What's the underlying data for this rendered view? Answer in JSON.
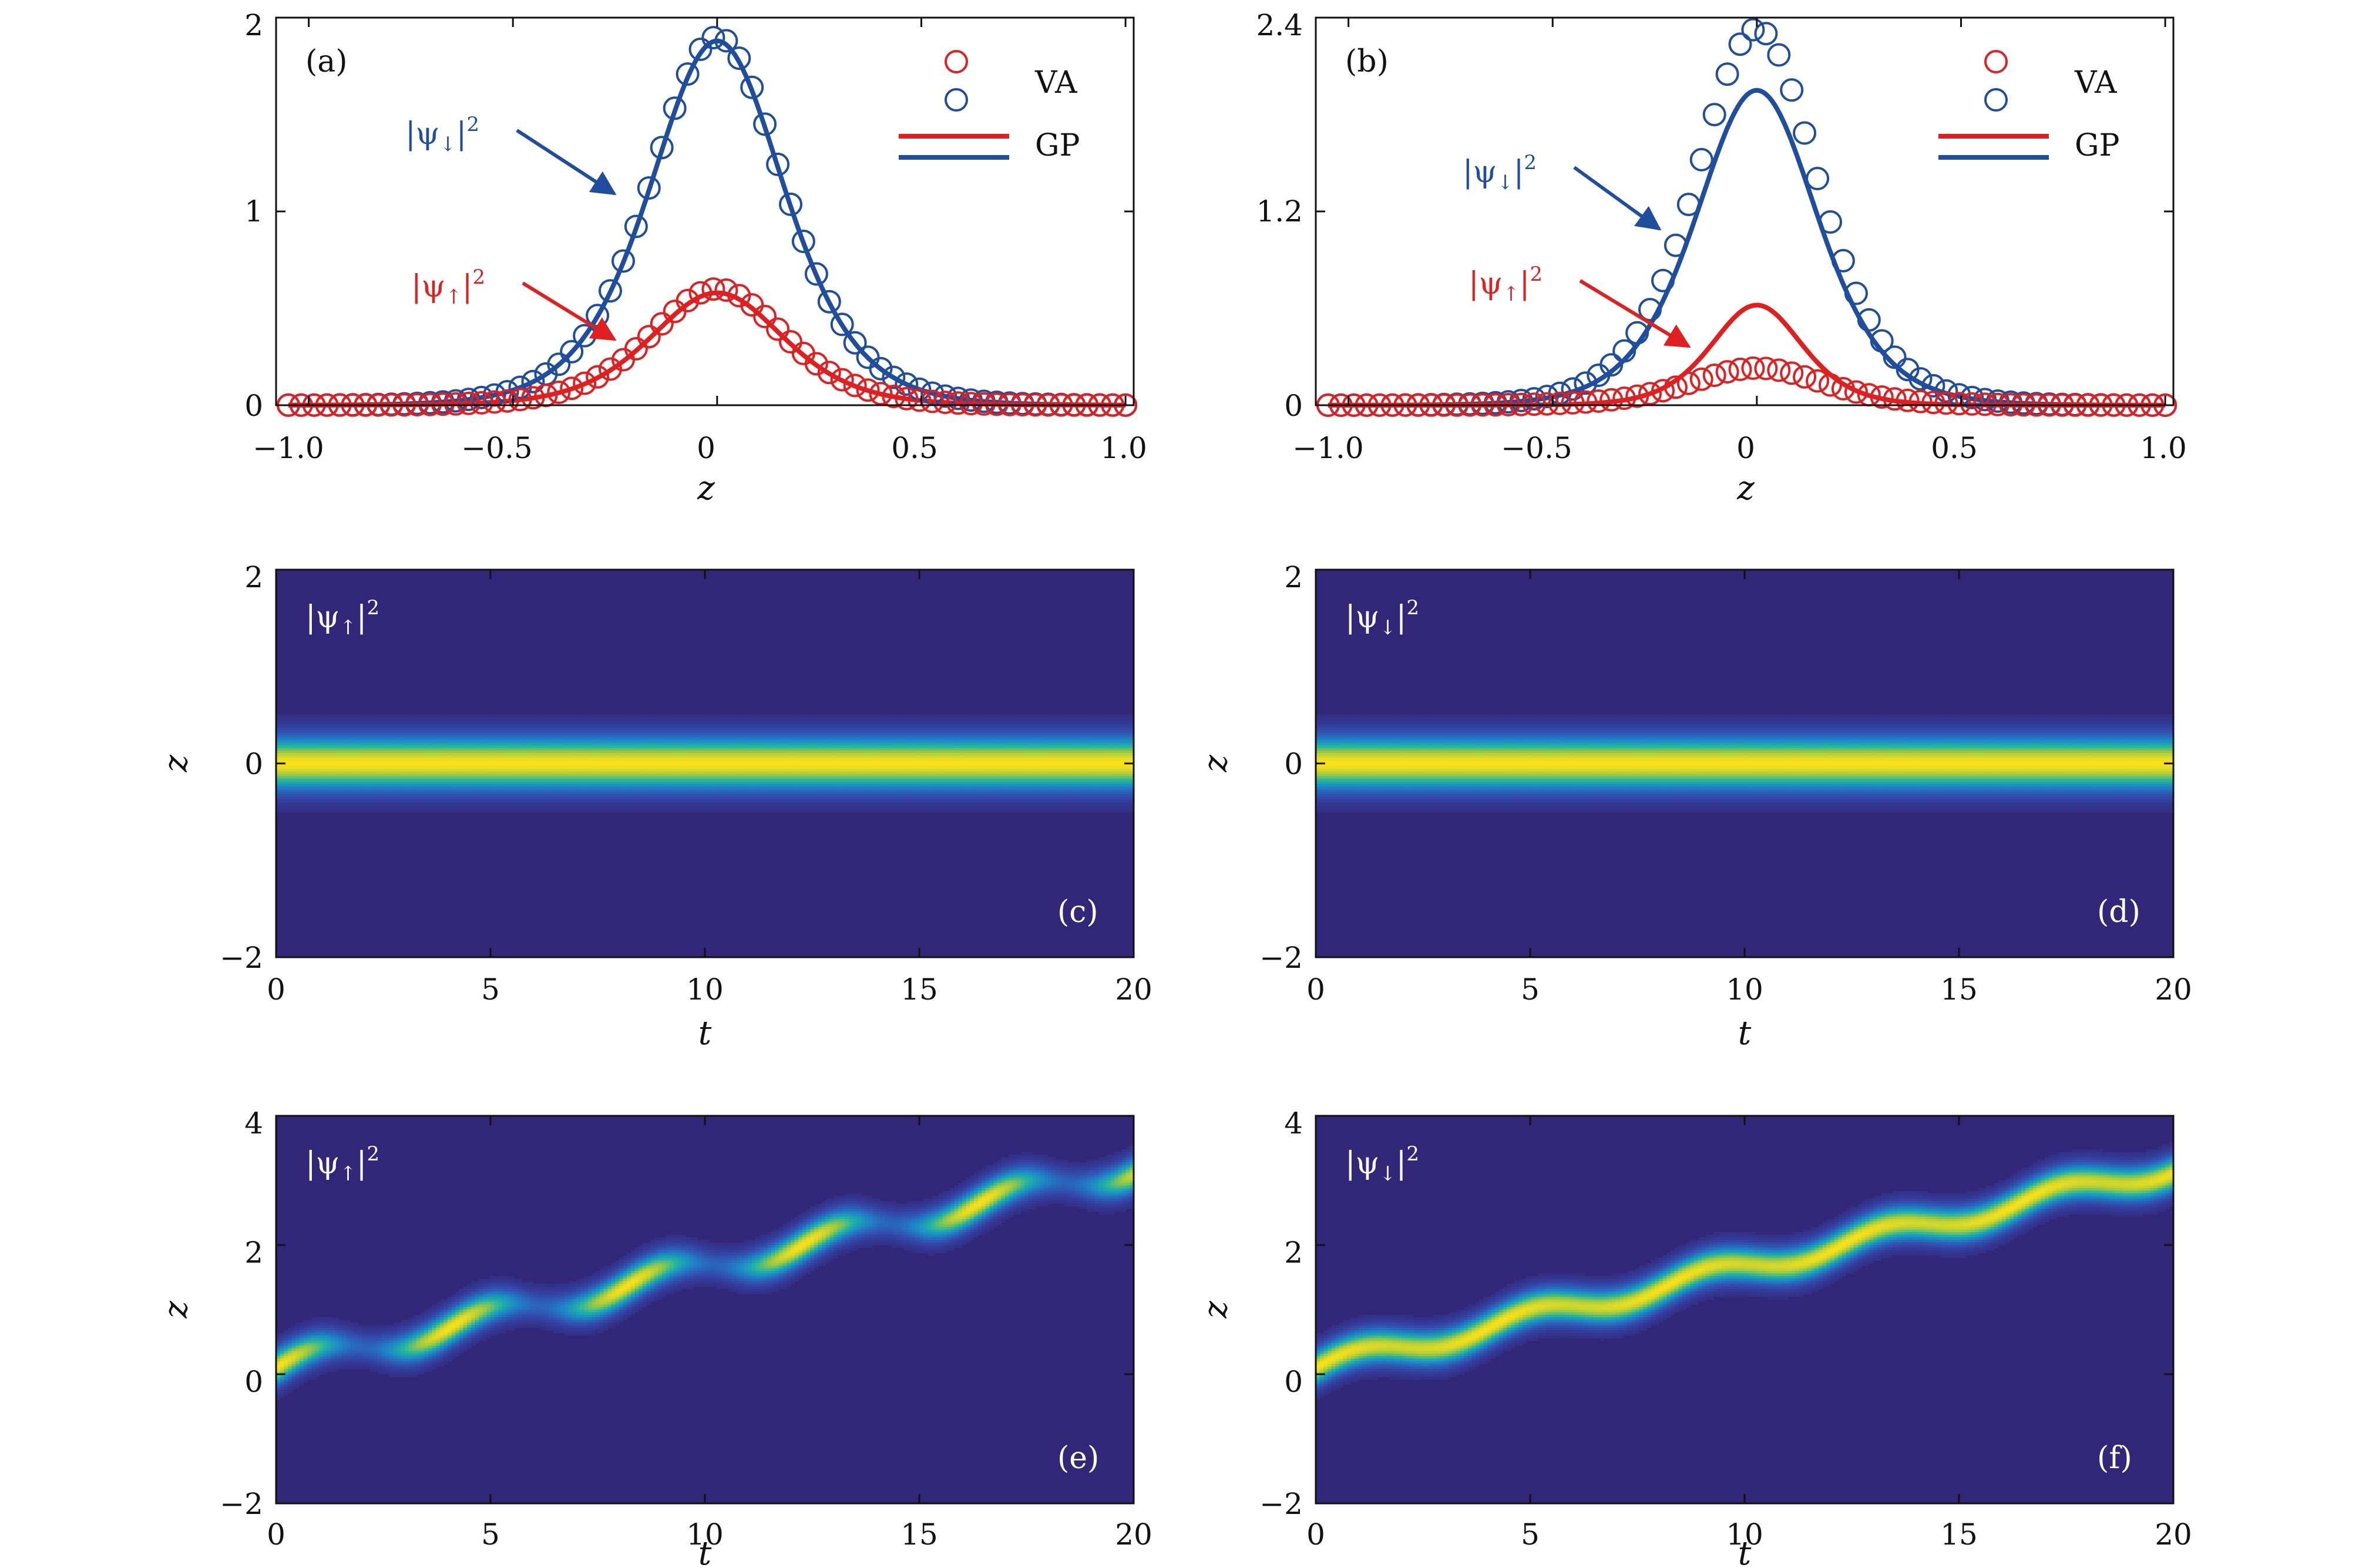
{
  "panels": {
    "a": {
      "tag": "(a)",
      "xlabel": "z",
      "xlim": [
        -1.0,
        1.0
      ],
      "ylim": [
        0,
        2
      ],
      "xticks": [
        "−1.0",
        "−0.5",
        "0",
        "0.5",
        "1.0"
      ],
      "yticks": [
        "0",
        "1",
        "2"
      ],
      "legend": {
        "va": "VA",
        "gp": "GP"
      },
      "ann_down": {
        "base": "|ψ",
        "sub": "↓",
        "tail": "|",
        "sup": "2"
      },
      "ann_up": {
        "base": "|ψ",
        "sub": "↑",
        "tail": "|",
        "sup": "2"
      }
    },
    "b": {
      "tag": "(b)",
      "xlabel": "z",
      "xlim": [
        -1.0,
        1.0
      ],
      "ylim": [
        0,
        2.4
      ],
      "xticks": [
        "−1.0",
        "−0.5",
        "0",
        "0.5",
        "1.0"
      ],
      "yticks": [
        "0",
        "1.2",
        "2.4"
      ],
      "legend": {
        "va": "VA",
        "gp": "GP"
      },
      "ann_down": {
        "base": "|ψ",
        "sub": "↓",
        "tail": "|",
        "sup": "2"
      },
      "ann_up": {
        "base": "|ψ",
        "sub": "↑",
        "tail": "|",
        "sup": "2"
      }
    },
    "c": {
      "tag": "(c)",
      "xlabel": "t",
      "ylabel": "z",
      "label": {
        "base": "|ψ",
        "sub": "↑",
        "tail": "|",
        "sup": "2"
      },
      "xticks": [
        "0",
        "5",
        "10",
        "15",
        "20"
      ],
      "yticks": [
        "−2",
        "0",
        "2"
      ]
    },
    "d": {
      "tag": "(d)",
      "xlabel": "t",
      "ylabel": "z",
      "label": {
        "base": "|ψ",
        "sub": "↓",
        "tail": "|",
        "sup": "2"
      },
      "xticks": [
        "0",
        "5",
        "10",
        "15",
        "20"
      ],
      "yticks": [
        "−2",
        "0",
        "2"
      ]
    },
    "e": {
      "tag": "(e)",
      "xlabel": "t",
      "ylabel": "z",
      "label": {
        "base": "|ψ",
        "sub": "↑",
        "tail": "|",
        "sup": "2"
      },
      "xticks": [
        "0",
        "5",
        "10",
        "15",
        "20"
      ],
      "yticks": [
        "−2",
        "0",
        "2",
        "4"
      ]
    },
    "f": {
      "tag": "(f)",
      "xlabel": "t",
      "ylabel": "z",
      "label": {
        "base": "|ψ",
        "sub": "↓",
        "tail": "|",
        "sup": "2"
      },
      "xticks": [
        "0",
        "5",
        "10",
        "15",
        "20"
      ],
      "yticks": [
        "−2",
        "0",
        "2",
        "4"
      ]
    }
  },
  "chart_data": [
    {
      "type": "line",
      "panel": "a",
      "x_range": [
        -1.05,
        1.0
      ],
      "ylim": [
        0,
        2
      ],
      "series": [
        {
          "name": "VA",
          "component": "down",
          "marker": "circle",
          "color": "#1f4e9e",
          "peak": 1.9,
          "width": 0.22
        },
        {
          "name": "VA",
          "component": "up",
          "marker": "circle",
          "color": "#e02020",
          "peak": 0.6,
          "width": 0.22
        },
        {
          "name": "GP",
          "component": "down",
          "marker": "line",
          "color": "#1f4e9e",
          "peak": 1.88,
          "width": 0.22
        },
        {
          "name": "GP",
          "component": "up",
          "marker": "line",
          "color": "#e02020",
          "peak": 0.58,
          "width": 0.22
        }
      ]
    },
    {
      "type": "line",
      "panel": "b",
      "x_range": [
        -1.05,
        1.0
      ],
      "ylim": [
        0,
        2.4
      ],
      "series": [
        {
          "name": "VA",
          "component": "down",
          "marker": "circle",
          "color": "#1f4e9e",
          "peak": 2.33,
          "width": 0.2
        },
        {
          "name": "VA",
          "component": "up",
          "marker": "circle",
          "color": "#e02020",
          "peak": 0.23,
          "width": 0.22
        },
        {
          "name": "GP",
          "component": "down",
          "marker": "line",
          "color": "#1f4e9e",
          "peak": 1.95,
          "width": 0.2
        },
        {
          "name": "GP",
          "component": "up",
          "marker": "line",
          "color": "#e02020",
          "peak": 0.62,
          "width": 0.15
        }
      ]
    },
    {
      "type": "heatmap",
      "panel": "c",
      "xlim": [
        0,
        20
      ],
      "ylim": [
        -2,
        2
      ],
      "center_start": 0.0,
      "drift_per_t": 0.0,
      "osc_amp": 0.0,
      "osc_period": 1,
      "width": 0.22,
      "breathing": 0.0
    },
    {
      "type": "heatmap",
      "panel": "d",
      "xlim": [
        0,
        20
      ],
      "ylim": [
        -2,
        2
      ],
      "center_start": 0.0,
      "drift_per_t": 0.0,
      "osc_amp": 0.0,
      "osc_period": 1,
      "width": 0.22,
      "breathing": 0.0
    },
    {
      "type": "heatmap",
      "panel": "e",
      "xlim": [
        0,
        20
      ],
      "ylim": [
        -2,
        4
      ],
      "center_start": 0.1,
      "drift_per_t": 0.155,
      "osc_amp": 0.17,
      "osc_period": 4.1,
      "width": 0.22,
      "breathing": 0.75
    },
    {
      "type": "heatmap",
      "panel": "f",
      "xlim": [
        0,
        20
      ],
      "ylim": [
        -2,
        4
      ],
      "center_start": 0.1,
      "drift_per_t": 0.155,
      "osc_amp": 0.14,
      "osc_period": 4.1,
      "width": 0.22,
      "breathing": 0.1
    }
  ]
}
